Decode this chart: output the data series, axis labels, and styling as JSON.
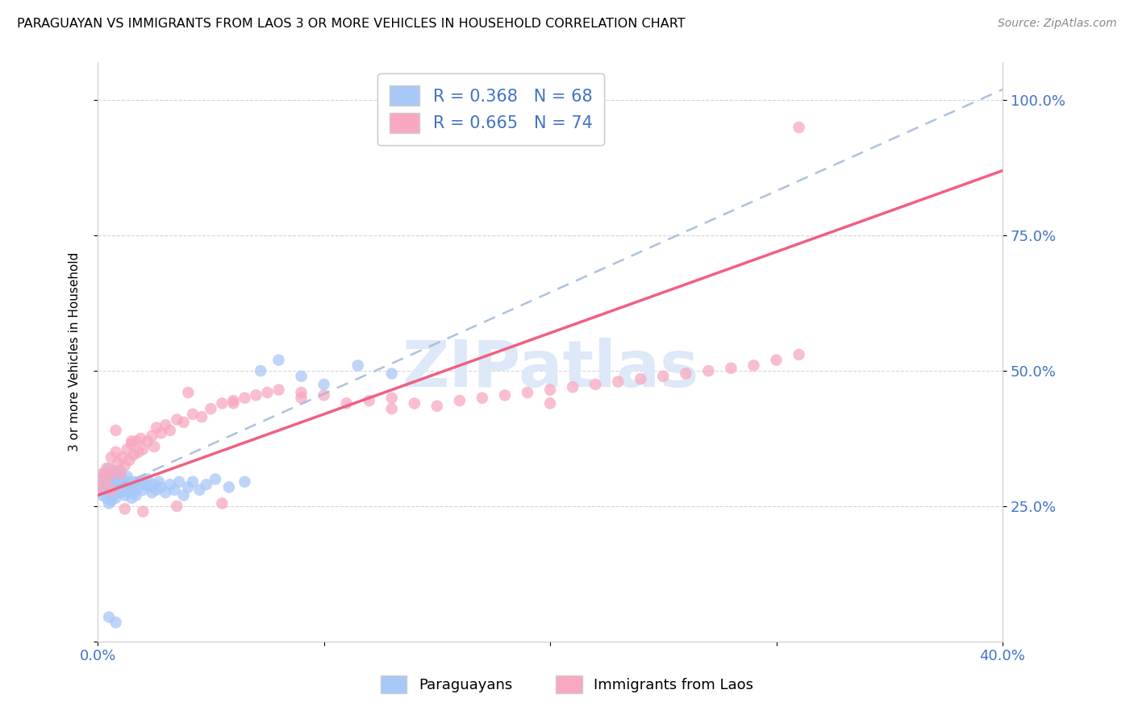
{
  "title": "PARAGUAYAN VS IMMIGRANTS FROM LAOS 3 OR MORE VEHICLES IN HOUSEHOLD CORRELATION CHART",
  "source": "Source: ZipAtlas.com",
  "ylabel": "3 or more Vehicles in Household",
  "xlim": [
    0.0,
    0.4
  ],
  "ylim": [
    0.0,
    1.07
  ],
  "color_paraguayan": "#a8c8f8",
  "color_laos": "#f8a8c0",
  "line_color_paraguayan": "#a8c8f8",
  "line_color_laos": "#f06080",
  "watermark": "ZIPatlas",
  "watermark_color": "#dde8f8",
  "R1": 0.368,
  "N1": 68,
  "R2": 0.665,
  "N2": 74,
  "blue_text_color": "#4472c4",
  "title_fontsize": 11.5,
  "tick_fontsize": 13,
  "legend_fontsize": 15,
  "par_x": [
    0.001,
    0.002,
    0.002,
    0.003,
    0.003,
    0.004,
    0.004,
    0.005,
    0.005,
    0.005,
    0.006,
    0.006,
    0.006,
    0.007,
    0.007,
    0.007,
    0.008,
    0.008,
    0.008,
    0.009,
    0.009,
    0.01,
    0.01,
    0.01,
    0.011,
    0.011,
    0.012,
    0.012,
    0.013,
    0.013,
    0.014,
    0.014,
    0.015,
    0.015,
    0.016,
    0.016,
    0.017,
    0.018,
    0.019,
    0.02,
    0.021,
    0.022,
    0.023,
    0.024,
    0.025,
    0.026,
    0.027,
    0.028,
    0.03,
    0.032,
    0.034,
    0.036,
    0.038,
    0.04,
    0.042,
    0.045,
    0.048,
    0.052,
    0.058,
    0.065,
    0.072,
    0.08,
    0.09,
    0.1,
    0.115,
    0.13,
    0.005,
    0.008
  ],
  "par_y": [
    0.285,
    0.3,
    0.27,
    0.31,
    0.28,
    0.295,
    0.265,
    0.32,
    0.275,
    0.255,
    0.305,
    0.285,
    0.26,
    0.295,
    0.315,
    0.27,
    0.285,
    0.3,
    0.265,
    0.29,
    0.31,
    0.275,
    0.295,
    0.315,
    0.28,
    0.3,
    0.27,
    0.29,
    0.285,
    0.305,
    0.275,
    0.295,
    0.265,
    0.285,
    0.275,
    0.295,
    0.27,
    0.285,
    0.295,
    0.28,
    0.29,
    0.3,
    0.285,
    0.275,
    0.29,
    0.28,
    0.295,
    0.285,
    0.275,
    0.29,
    0.28,
    0.295,
    0.27,
    0.285,
    0.295,
    0.28,
    0.29,
    0.3,
    0.285,
    0.295,
    0.5,
    0.52,
    0.49,
    0.475,
    0.51,
    0.495,
    0.045,
    0.035
  ],
  "laos_x": [
    0.001,
    0.002,
    0.003,
    0.004,
    0.005,
    0.006,
    0.007,
    0.008,
    0.009,
    0.01,
    0.011,
    0.012,
    0.013,
    0.014,
    0.015,
    0.016,
    0.017,
    0.018,
    0.019,
    0.02,
    0.022,
    0.024,
    0.026,
    0.028,
    0.03,
    0.032,
    0.035,
    0.038,
    0.042,
    0.046,
    0.05,
    0.055,
    0.06,
    0.065,
    0.07,
    0.075,
    0.08,
    0.09,
    0.1,
    0.11,
    0.12,
    0.13,
    0.14,
    0.15,
    0.16,
    0.17,
    0.18,
    0.19,
    0.2,
    0.21,
    0.22,
    0.23,
    0.24,
    0.25,
    0.26,
    0.27,
    0.28,
    0.29,
    0.3,
    0.31,
    0.008,
    0.015,
    0.025,
    0.04,
    0.06,
    0.09,
    0.13,
    0.2,
    0.006,
    0.012,
    0.02,
    0.035,
    0.055,
    0.31
  ],
  "laos_y": [
    0.285,
    0.31,
    0.295,
    0.32,
    0.305,
    0.34,
    0.315,
    0.35,
    0.33,
    0.31,
    0.34,
    0.325,
    0.355,
    0.335,
    0.365,
    0.345,
    0.37,
    0.35,
    0.375,
    0.355,
    0.37,
    0.38,
    0.395,
    0.385,
    0.4,
    0.39,
    0.41,
    0.405,
    0.42,
    0.415,
    0.43,
    0.44,
    0.445,
    0.45,
    0.455,
    0.46,
    0.465,
    0.46,
    0.455,
    0.44,
    0.445,
    0.45,
    0.44,
    0.435,
    0.445,
    0.45,
    0.455,
    0.46,
    0.465,
    0.47,
    0.475,
    0.48,
    0.485,
    0.49,
    0.495,
    0.5,
    0.505,
    0.51,
    0.52,
    0.53,
    0.39,
    0.37,
    0.36,
    0.46,
    0.44,
    0.45,
    0.43,
    0.44,
    0.28,
    0.245,
    0.24,
    0.25,
    0.255,
    0.95
  ]
}
